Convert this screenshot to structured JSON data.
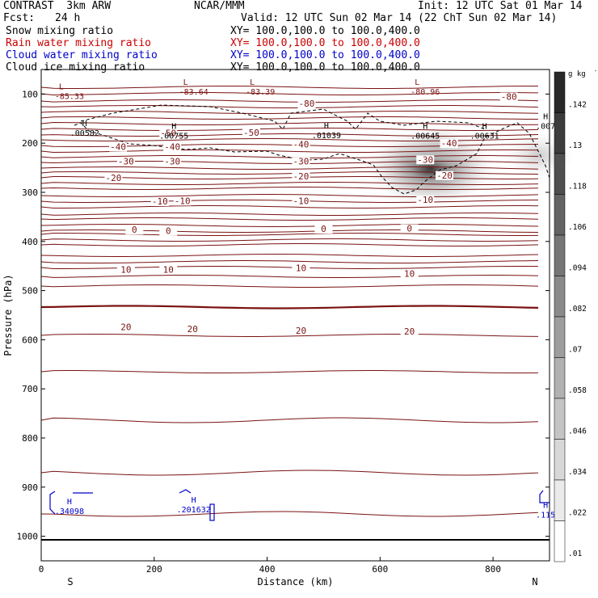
{
  "header": {
    "model": "CONTRAST  3km ARW",
    "center": "NCAR/MMM",
    "init": "Init: 12 UTC Sat 01 Mar 14",
    "fcst_label": "Fcst:",
    "fcst_value": "24 h",
    "valid": "Valid: 12 UTC Sun 02 Mar 14 (22 ChT Sun 02 Mar 14)",
    "fields": [
      {
        "name": "Snow mixing ratio",
        "xy": "XY= 100.0,100.0 to 100.0,400.0",
        "color": "#000000"
      },
      {
        "name": "Rain water mixing ratio",
        "xy": "XY= 100.0,100.0 to 100.0,400.0",
        "color": "#cc0000"
      },
      {
        "name": "Cloud water mixing ratio",
        "xy": "XY= 100.0,100.0 to 100.0,400.0",
        "color": "#0000cc"
      },
      {
        "name": "Cloud ice mixing ratio",
        "xy": "XY= 100.0,100.0 to 100.0,400.0",
        "color": "#000000"
      }
    ]
  },
  "chart_data": {
    "type": "cross-section",
    "xlabel": "Distance (km)",
    "ylabel": "Pressure (hPa)",
    "xlim": [
      0,
      900
    ],
    "ylim": [
      1050,
      50
    ],
    "xticks": [
      0,
      200,
      400,
      600,
      800
    ],
    "yticks": [
      100,
      200,
      300,
      400,
      500,
      600,
      700,
      800,
      900,
      1000
    ],
    "x_end_labels": {
      "left": "S",
      "right": "N"
    },
    "colorbar": {
      "unit": "g kg",
      "unit_exp": "-1",
      "labels": [
        ".142",
        ".13",
        ".118",
        ".106",
        ".094",
        ".082",
        ".07",
        ".058",
        ".046",
        ".034",
        ".022",
        ".01"
      ],
      "levels": [
        0.01,
        0.022,
        0.034,
        0.046,
        0.058,
        0.07,
        0.082,
        0.094,
        0.106,
        0.118,
        0.13,
        0.142
      ]
    },
    "temperature_contours": [
      {
        "value": -80,
        "label": "-80",
        "positions": [
          [
            470,
            124
          ],
          [
            828,
            110
          ]
        ]
      },
      {
        "value": -50,
        "label": "-50",
        "positions": [
          [
            225,
            184
          ],
          [
            372,
            183
          ]
        ]
      },
      {
        "value": -40,
        "label": "-40",
        "positions": [
          [
            136,
            212
          ],
          [
            232,
            212
          ],
          [
            460,
            207
          ],
          [
            722,
            205
          ]
        ]
      },
      {
        "value": -30,
        "label": "-30",
        "positions": [
          [
            150,
            242
          ],
          [
            232,
            242
          ],
          [
            460,
            242
          ],
          [
            680,
            238
          ]
        ]
      },
      {
        "value": -20,
        "label": "-20",
        "positions": [
          [
            128,
            275
          ],
          [
            460,
            272
          ],
          [
            714,
            270
          ]
        ]
      },
      {
        "value": -10,
        "label": "-10",
        "positions": [
          [
            210,
            323
          ],
          [
            250,
            322
          ],
          [
            460,
            322
          ],
          [
            680,
            320
          ]
        ]
      },
      {
        "value": 0,
        "label": "0",
        "positions": [
          [
            165,
            381
          ],
          [
            225,
            383
          ],
          [
            500,
            379
          ],
          [
            652,
            378
          ]
        ]
      },
      {
        "value": 10,
        "label": "10",
        "positions": [
          [
            150,
            462
          ],
          [
            225,
            462
          ],
          [
            460,
            459
          ],
          [
            652,
            470
          ]
        ]
      },
      {
        "value": 20,
        "label": "20",
        "positions": [
          [
            150,
            579
          ],
          [
            268,
            583
          ],
          [
            460,
            586
          ],
          [
            652,
            588
          ]
        ]
      }
    ],
    "snow_extrema": [
      {
        "type": "H",
        "value": ".00582",
        "x": 77,
        "p": 185
      },
      {
        "type": "H",
        "value": ".00755",
        "x": 235,
        "p": 191
      },
      {
        "type": "H",
        "value": ".01039",
        "x": 505,
        "p": 190
      },
      {
        "type": "H",
        "value": ".00645",
        "x": 680,
        "p": 191
      },
      {
        "type": "H",
        "value": ".00631",
        "x": 785,
        "p": 191
      },
      {
        "type": "H",
        "value": ".007",
        "x": 893,
        "p": 171
      }
    ],
    "temperature_lows": [
      {
        "type": "L",
        "value": "-85.33",
        "x": 50,
        "p": 102
      },
      {
        "type": "L",
        "value": "-83.64",
        "x": 270,
        "p": 93
      },
      {
        "type": "L",
        "value": "-83.39",
        "x": 388,
        "p": 93
      },
      {
        "type": "L",
        "value": "-80.96",
        "x": 680,
        "p": 93
      }
    ],
    "cloud_water_extrema": [
      {
        "type": "H",
        "value": ".34098",
        "x": 50,
        "p": 955
      },
      {
        "type": "H",
        "value": ".201632",
        "x": 270,
        "p": 951
      },
      {
        "type": "H",
        "value": ".115",
        "x": 893,
        "p": 962
      }
    ],
    "shaded_cloud_ice": [
      {
        "x": 690,
        "p": 250,
        "max": 0.142
      },
      {
        "x": 880,
        "p": 225,
        "max": 0.03
      },
      {
        "x": 700,
        "p": 210,
        "max": 0.03
      }
    ]
  }
}
